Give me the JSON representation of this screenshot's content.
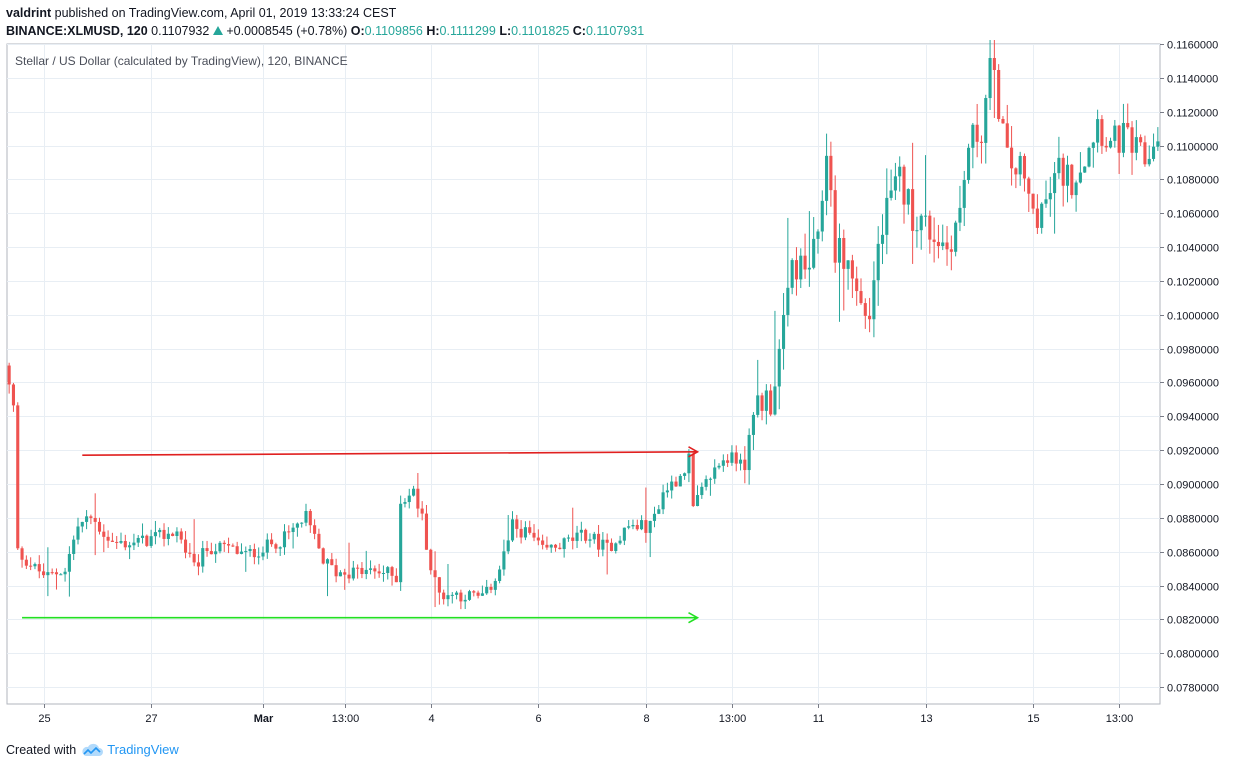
{
  "header": {
    "author": "valdrint",
    "published_text": "published on TradingView.com, April 01, 2019 13:33:24 CEST",
    "symbol": "BINANCE:XLMUSD, 120",
    "last_price": "0.1107932",
    "change": "+0.0008545 (+0.78%)",
    "o_label": "O:",
    "o_value": "0.1109856",
    "h_label": "H:",
    "h_value": "0.1111299",
    "l_label": "L:",
    "l_value": "0.1101825",
    "c_label": "C:",
    "c_value": "0.1107931"
  },
  "footer": {
    "created_with": "Created with",
    "brand": "TradingView"
  },
  "colors": {
    "up": "#26a69a",
    "down": "#ef5350",
    "grid": "#e8eef4",
    "resistance": "#e02020",
    "support": "#22e022"
  },
  "chart_data": {
    "type": "candlestick",
    "title": "Stellar / US Dollar (calculated by TradingView), 120, BINANCE",
    "ylim": [
      0.077,
      0.116
    ],
    "y_ticks": [
      "0.1160000",
      "0.1140000",
      "0.1120000",
      "0.1100000",
      "0.1080000",
      "0.1060000",
      "0.1040000",
      "0.1020000",
      "0.1000000",
      "0.0980000",
      "0.0960000",
      "0.0940000",
      "0.0920000",
      "0.0900000",
      "0.0880000",
      "0.0860000",
      "0.0840000",
      "0.0820000",
      "0.0800000",
      "0.0780000"
    ],
    "x_ticks": [
      "25",
      "27",
      "Mar",
      "13:00",
      "4",
      "6",
      "8",
      "13:00",
      "11",
      "13",
      "15",
      "13:00"
    ],
    "bar_count": 268,
    "x_tick_bars": [
      8,
      33,
      59,
      78,
      98,
      123,
      148,
      168,
      188,
      213,
      238,
      258
    ],
    "anchors": [
      [
        0,
        0.097
      ],
      [
        2,
        0.0945
      ],
      [
        3,
        0.086
      ],
      [
        7,
        0.085
      ],
      [
        10,
        0.0845
      ],
      [
        14,
        0.085
      ],
      [
        17,
        0.0875
      ],
      [
        20,
        0.088
      ],
      [
        25,
        0.0865
      ],
      [
        30,
        0.0865
      ],
      [
        35,
        0.0868
      ],
      [
        40,
        0.0872
      ],
      [
        44,
        0.085
      ],
      [
        47,
        0.0862
      ],
      [
        52,
        0.0862
      ],
      [
        56,
        0.0858
      ],
      [
        60,
        0.0862
      ],
      [
        65,
        0.0868
      ],
      [
        70,
        0.088
      ],
      [
        74,
        0.0855
      ],
      [
        77,
        0.0848
      ],
      [
        82,
        0.0848
      ],
      [
        88,
        0.0848
      ],
      [
        91,
        0.0845
      ],
      [
        92,
        0.089
      ],
      [
        95,
        0.0895
      ],
      [
        97,
        0.088
      ],
      [
        99,
        0.085
      ],
      [
        101,
        0.0835
      ],
      [
        105,
        0.0835
      ],
      [
        110,
        0.0833
      ],
      [
        112,
        0.0835
      ],
      [
        115,
        0.085
      ],
      [
        118,
        0.0875
      ],
      [
        122,
        0.087
      ],
      [
        125,
        0.086
      ],
      [
        130,
        0.0865
      ],
      [
        135,
        0.087
      ],
      [
        140,
        0.0862
      ],
      [
        145,
        0.0875
      ],
      [
        150,
        0.0875
      ],
      [
        153,
        0.0895
      ],
      [
        157,
        0.0905
      ],
      [
        159,
        0.0915
      ],
      [
        160,
        0.0885
      ],
      [
        164,
        0.0905
      ],
      [
        167,
        0.0915
      ],
      [
        170,
        0.0915
      ],
      [
        173,
        0.092
      ],
      [
        175,
        0.095
      ],
      [
        178,
        0.095
      ],
      [
        181,
        0.099
      ],
      [
        183,
        0.103
      ],
      [
        186,
        0.1025
      ],
      [
        189,
        0.104
      ],
      [
        191,
        0.11
      ],
      [
        193,
        0.104
      ],
      [
        196,
        0.103
      ],
      [
        199,
        0.1005
      ],
      [
        201,
        0.1
      ],
      [
        203,
        0.104
      ],
      [
        205,
        0.106
      ],
      [
        208,
        0.108
      ],
      [
        211,
        0.106
      ],
      [
        215,
        0.105
      ],
      [
        219,
        0.104
      ],
      [
        222,
        0.106
      ],
      [
        224,
        0.11
      ],
      [
        227,
        0.111
      ],
      [
        229,
        0.1145
      ],
      [
        231,
        0.1125
      ],
      [
        233,
        0.109
      ],
      [
        236,
        0.1085
      ],
      [
        239,
        0.106
      ],
      [
        242,
        0.1065
      ],
      [
        245,
        0.1085
      ],
      [
        248,
        0.108
      ],
      [
        251,
        0.1095
      ],
      [
        254,
        0.1115
      ],
      [
        257,
        0.11
      ],
      [
        260,
        0.1105
      ],
      [
        263,
        0.1095
      ],
      [
        265,
        0.109
      ],
      [
        268,
        0.1107
      ]
    ],
    "annotations": [
      {
        "kind": "resistance-arrow",
        "from_bar": 17,
        "to_bar": 160,
        "from_y": 0.0917,
        "to_y": 0.0919
      },
      {
        "kind": "support-arrow",
        "from_bar": 3,
        "to_bar": 160,
        "from_y": 0.0821,
        "to_y": 0.0821
      }
    ]
  }
}
